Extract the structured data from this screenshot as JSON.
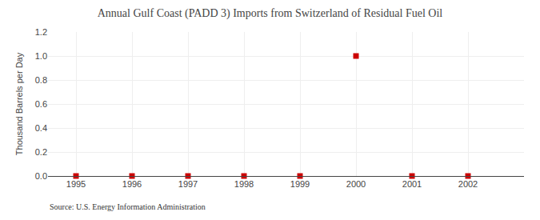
{
  "chart_data": {
    "type": "scatter",
    "title": "Annual Gulf Coast (PADD 3) Imports from Switzerland of Residual Fuel Oil",
    "ylabel": "Thousand Barrels per Day",
    "annotations": [
      "Source: U.S. Energy Information Administration"
    ],
    "x": [
      1995,
      1996,
      1997,
      1998,
      1999,
      2000,
      2001,
      2002
    ],
    "values": [
      0.0,
      0.0,
      0.0,
      0.0,
      0.0,
      1.0,
      0.0,
      0.0
    ],
    "color": "#cc0000",
    "marker": "square",
    "xlim": [
      1994.5,
      2003.0
    ],
    "xticks": [
      1995,
      1996,
      1997,
      1998,
      1999,
      2000,
      2001,
      2002
    ],
    "ylim": [
      0.0,
      1.2
    ],
    "yticks": [
      {
        "value": 0.0,
        "label": "0.0"
      },
      0.2,
      0.4,
      0.6,
      0.8,
      {
        "value": 1.0,
        "label": "1.0"
      },
      1.2
    ],
    "grid": true
  }
}
